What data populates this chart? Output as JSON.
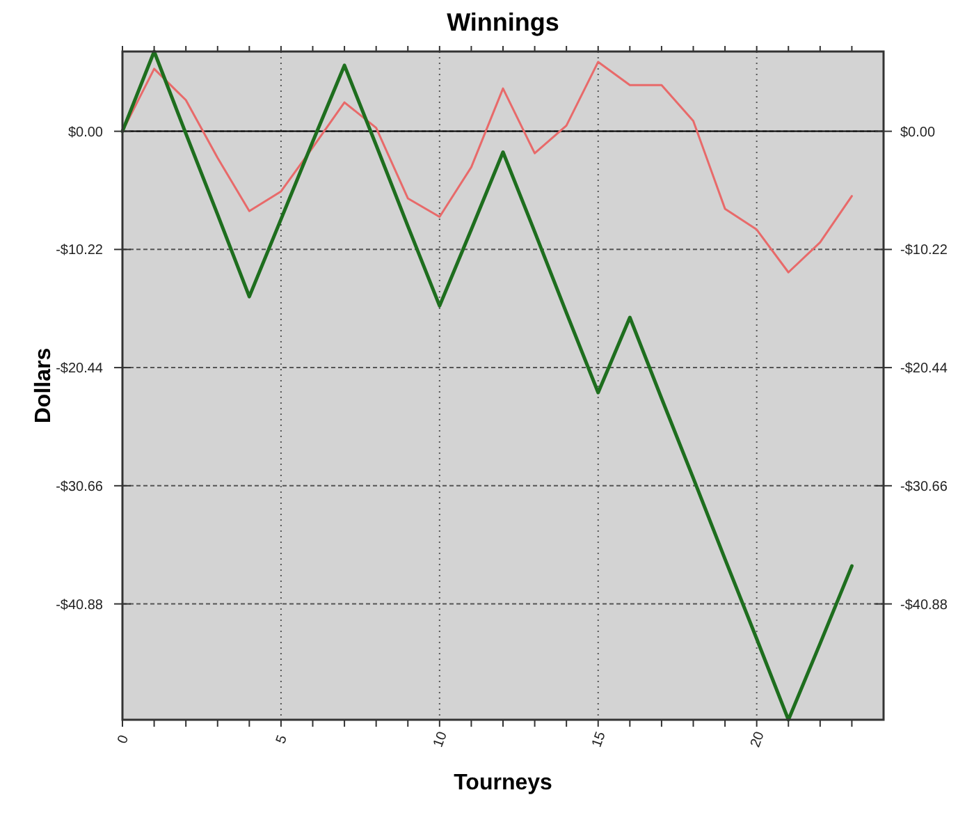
{
  "chart_data": {
    "type": "line",
    "title": "Winnings",
    "xlabel": "Tourneys",
    "ylabel": "Dollars",
    "x": [
      0,
      1,
      2,
      3,
      4,
      5,
      6,
      7,
      8,
      9,
      10,
      11,
      12,
      13,
      14,
      15,
      16,
      17,
      18,
      19,
      20,
      21,
      22,
      23
    ],
    "series": [
      {
        "color": "#e86a6a",
        "values": [
          0,
          5.4,
          2.7,
          -2.3,
          -6.9,
          -5.2,
          -1.4,
          2.5,
          0.3,
          -5.8,
          -7.4,
          -3.1,
          3.7,
          -1.9,
          0.5,
          6.0,
          4.0,
          4.0,
          0.9,
          -6.7,
          -8.5,
          -12.2,
          -9.6,
          -5.6
        ]
      },
      {
        "color": "#1e6e1e",
        "values": [
          0,
          6.9,
          -0.2,
          -7.2,
          -14.3,
          -7.6,
          -0.9,
          5.7,
          -1.2,
          -8.2,
          -15.1,
          -8.5,
          -1.8,
          -8.7,
          -15.7,
          -22.6,
          -16.1,
          -23.1,
          -30.0,
          -37.0,
          -43.9,
          -50.9,
          -44.3,
          -37.6
        ]
      }
    ],
    "xlim": [
      0,
      24
    ],
    "xticks": [
      0,
      {
        "value": 1,
        "label": null
      },
      {
        "value": 2,
        "label": null
      },
      {
        "value": 3,
        "label": null
      },
      {
        "value": 4,
        "label": null
      },
      5,
      {
        "value": 6,
        "label": null
      },
      {
        "value": 7,
        "label": null
      },
      {
        "value": 8,
        "label": null
      },
      {
        "value": 9,
        "label": null
      },
      10,
      {
        "value": 11,
        "label": null
      },
      {
        "value": 12,
        "label": null
      },
      {
        "value": 13,
        "label": null
      },
      {
        "value": 14,
        "label": null
      },
      15,
      {
        "value": 16,
        "label": null
      },
      {
        "value": 17,
        "label": null
      },
      {
        "value": 18,
        "label": null
      },
      {
        "value": 19,
        "label": null
      },
      20,
      {
        "value": 21,
        "label": null
      },
      {
        "value": 22,
        "label": null
      },
      {
        "value": 23,
        "label": null
      }
    ],
    "ylim": [
      -50.9,
      6.9
    ],
    "yticks": [
      {
        "value": 0,
        "label": "$0.00"
      },
      {
        "value": -10.22,
        "label": "-$10.22"
      },
      {
        "value": -20.44,
        "label": "-$20.44"
      },
      {
        "value": -30.66,
        "label": "-$30.66"
      },
      {
        "value": -40.88,
        "label": "-$40.88"
      }
    ],
    "y2lim": [
      -50.9,
      6.9
    ],
    "y2ticks": [
      {
        "value": 0,
        "label": "$0.00"
      },
      {
        "value": -10.22,
        "label": "-$10.22"
      },
      {
        "value": -20.44,
        "label": "-$20.44"
      },
      {
        "value": -30.66,
        "label": "-$30.66"
      },
      {
        "value": -40.88,
        "label": "-$40.88"
      }
    ],
    "ref_lines": [
      {
        "axis": "y",
        "value": 0,
        "color": "#000000"
      }
    ],
    "grid": true,
    "marker": "none",
    "line_style": "solid"
  }
}
